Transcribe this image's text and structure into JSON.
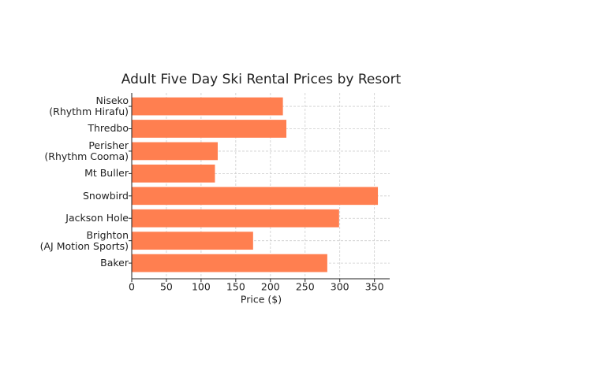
{
  "chart_data": {
    "type": "barh",
    "title": "Adult Five Day Ski Rental Prices by Resort",
    "xlabel": "Price ($)",
    "categories": [
      "Niseko\n(Rhythm Hirafu)",
      "Thredbo",
      "Perisher\n(Rhythm Cooma)",
      "Mt Buller",
      "Snowbird",
      "Jackson Hole",
      "Brighton\n(AJ Motion Sports)",
      "Baker"
    ],
    "values": [
      218,
      223,
      124,
      120,
      355,
      299,
      175,
      282
    ],
    "color": "#ff7f50",
    "xlim": [
      0,
      372
    ],
    "xticks": [
      0,
      50,
      100,
      150,
      200,
      250,
      300,
      350
    ],
    "grid": true
  }
}
